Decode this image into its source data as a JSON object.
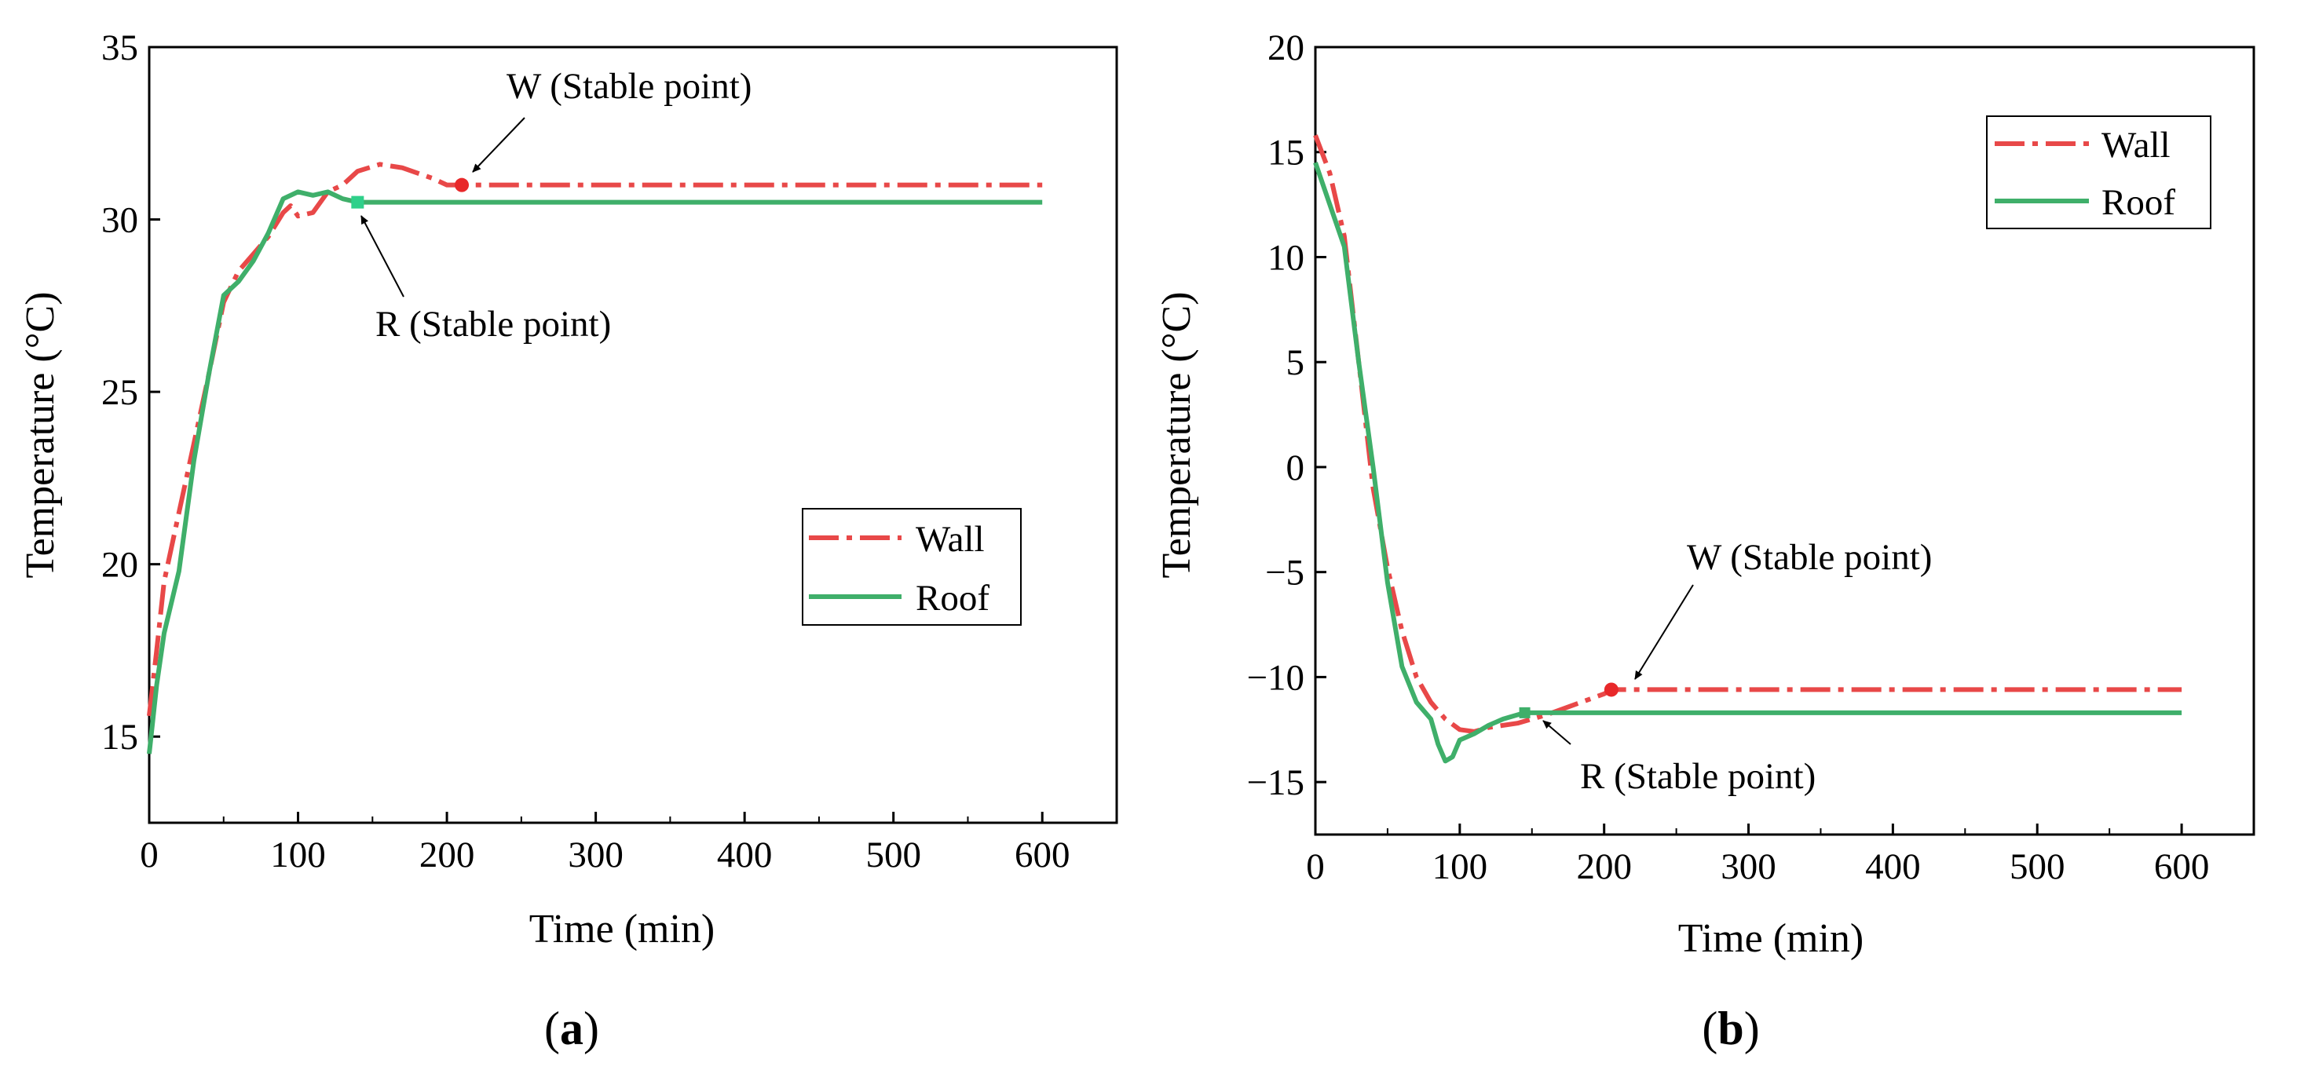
{
  "chart_data": [
    {
      "type": "line",
      "panel_label": "a",
      "xlabel": "Time (min)",
      "ylabel": "Temperature (°C)",
      "xlim": [
        0,
        650
      ],
      "ylim": [
        12.5,
        35
      ],
      "xticks": [
        0,
        100,
        200,
        300,
        400,
        500,
        600
      ],
      "yticks": [
        15,
        20,
        25,
        30,
        35
      ],
      "legend": {
        "position": "lower-right",
        "entries": [
          "Wall",
          "Roof"
        ]
      },
      "series": [
        {
          "name": "Wall",
          "color": "#e84848",
          "style": "dash-dot",
          "x": [
            0,
            5,
            10,
            20,
            30,
            40,
            50,
            60,
            70,
            80,
            90,
            95,
            100,
            110,
            120,
            130,
            140,
            155,
            170,
            190,
            200,
            210,
            300,
            400,
            500,
            600
          ],
          "y": [
            15.6,
            17.5,
            19.5,
            21.5,
            23.5,
            25.5,
            27.6,
            28.5,
            29.0,
            29.5,
            30.2,
            30.4,
            30.1,
            30.2,
            30.8,
            31.0,
            31.4,
            31.6,
            31.5,
            31.2,
            31.0,
            31.0,
            31.0,
            31.0,
            31.0,
            31.0
          ]
        },
        {
          "name": "Roof",
          "color": "#3faf6a",
          "style": "solid",
          "x": [
            0,
            5,
            10,
            20,
            30,
            40,
            50,
            60,
            70,
            80,
            90,
            100,
            110,
            120,
            130,
            140,
            200,
            300,
            400,
            500,
            600
          ],
          "y": [
            14.5,
            16.5,
            18.0,
            19.8,
            23.0,
            25.5,
            27.8,
            28.2,
            28.8,
            29.6,
            30.6,
            30.8,
            30.7,
            30.8,
            30.6,
            30.5,
            30.5,
            30.5,
            30.5,
            30.5,
            30.5
          ]
        }
      ],
      "annotations": [
        {
          "text": "W (Stable point)",
          "x": 210,
          "y": 31.0,
          "marker_color": "#e8282a"
        },
        {
          "text": "R (Stable point)",
          "x": 140,
          "y": 30.5,
          "marker_color": "#2fd08a"
        }
      ]
    },
    {
      "type": "line",
      "panel_label": "b",
      "xlabel": "Time (min)",
      "ylabel": "Temperature (°C)",
      "xlim": [
        0,
        650
      ],
      "ylim": [
        -17.5,
        20
      ],
      "xticks": [
        0,
        100,
        200,
        300,
        400,
        500,
        600
      ],
      "yticks": [
        -15,
        -10,
        -5,
        0,
        5,
        10,
        15,
        20
      ],
      "legend": {
        "position": "top-right",
        "entries": [
          "Wall",
          "Roof"
        ]
      },
      "series": [
        {
          "name": "Wall",
          "color": "#e84848",
          "style": "dash-dot",
          "x": [
            0,
            10,
            20,
            30,
            40,
            50,
            60,
            70,
            80,
            90,
            100,
            110,
            120,
            140,
            160,
            180,
            200,
            205,
            300,
            400,
            500,
            600
          ],
          "y": [
            15.8,
            14.0,
            11.0,
            5.0,
            -1.0,
            -4.8,
            -7.8,
            -10.0,
            -11.2,
            -12.0,
            -12.5,
            -12.6,
            -12.4,
            -12.2,
            -11.8,
            -11.3,
            -10.8,
            -10.6,
            -10.6,
            -10.6,
            -10.6,
            -10.6
          ]
        },
        {
          "name": "Roof",
          "color": "#3faf6a",
          "style": "solid",
          "x": [
            0,
            10,
            20,
            30,
            40,
            50,
            60,
            70,
            80,
            85,
            90,
            95,
            100,
            110,
            120,
            130,
            140,
            145,
            200,
            300,
            400,
            500,
            600
          ],
          "y": [
            14.5,
            12.5,
            10.5,
            5.0,
            0.0,
            -5.5,
            -9.5,
            -11.2,
            -12.0,
            -13.2,
            -14.0,
            -13.8,
            -13.0,
            -12.7,
            -12.3,
            -12.0,
            -11.8,
            -11.7,
            -11.7,
            -11.7,
            -11.7,
            -11.7,
            -11.7
          ]
        }
      ],
      "annotations": [
        {
          "text": "W (Stable point)",
          "x": 205,
          "y": -10.6,
          "marker_color": "#e8282a"
        },
        {
          "text": "R  (Stable point)",
          "x": 145,
          "y": -11.7,
          "marker_color": "#3faf6a"
        }
      ]
    }
  ]
}
